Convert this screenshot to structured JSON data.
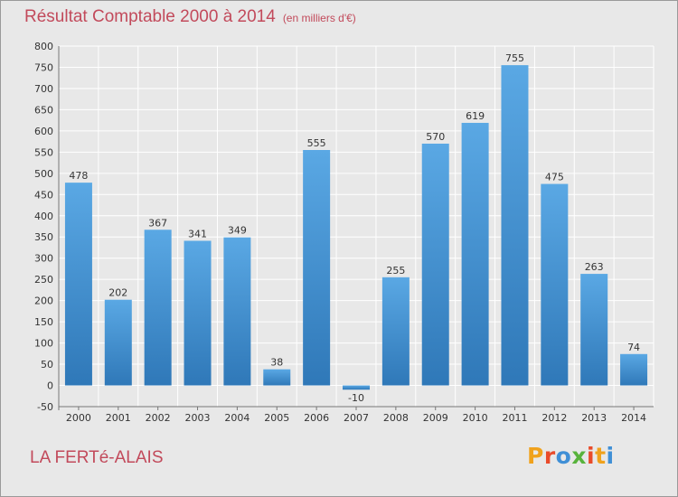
{
  "chart_data": {
    "type": "bar",
    "title": "Résultat Comptable 2000 à 2014",
    "subtitle": "(en milliers d'€)",
    "categories": [
      "2000",
      "2001",
      "2002",
      "2003",
      "2004",
      "2005",
      "2006",
      "2007",
      "2008",
      "2009",
      "2010",
      "2011",
      "2012",
      "2013",
      "2014"
    ],
    "values": [
      478,
      202,
      367,
      341,
      349,
      38,
      555,
      -10,
      255,
      570,
      619,
      755,
      475,
      263,
      74
    ],
    "value_labels": [
      "478",
      "202",
      "367",
      "341",
      "349",
      "38",
      "555",
      "-10",
      "255",
      "570",
      "619",
      "755",
      "475",
      "263",
      "74"
    ],
    "ylim": [
      -50,
      800
    ],
    "yticks": [
      -50,
      0,
      50,
      100,
      150,
      200,
      250,
      300,
      350,
      400,
      450,
      500,
      550,
      600,
      650,
      700,
      750,
      800
    ],
    "ytick_labels": [
      "-50",
      "0",
      "50",
      "100",
      "150",
      "200",
      "250",
      "300",
      "350",
      "400",
      "450",
      "500",
      "550",
      "600",
      "650",
      "700",
      "750",
      "800"
    ],
    "grid": true,
    "xlabel": "",
    "ylabel": ""
  },
  "location": "LA FERTé-ALAIS",
  "logo": {
    "text": "Proxiti",
    "letters": [
      "P",
      "r",
      "o",
      "x",
      "i",
      "t",
      "i"
    ],
    "colors": [
      "#f0a21d",
      "#e94b2a",
      "#3f8fd6",
      "#58b33c",
      "#e94b2a",
      "#f0a21d",
      "#3f8fd6"
    ]
  },
  "colors": {
    "bar_top": "#5aa8e4",
    "bar_bottom": "#2f78b8",
    "grid": "#ffffff",
    "title": "#c24a5b"
  }
}
